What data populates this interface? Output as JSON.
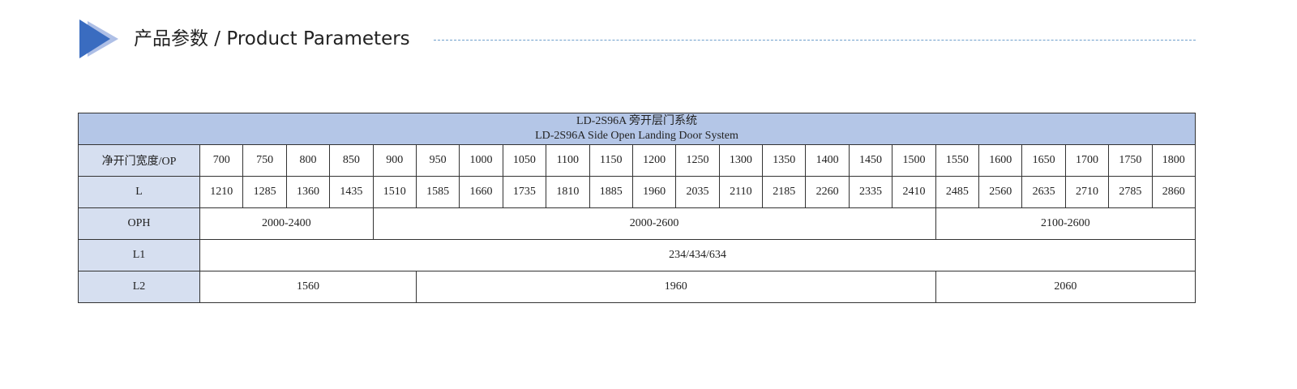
{
  "header": {
    "title": "产品参数 / Product Parameters"
  },
  "table": {
    "title": [
      "LD-2S96A 旁开层门系统",
      "LD-2S96A Side Open Landing Door System"
    ],
    "rows": [
      {
        "label": "净开门宽度/OP",
        "cells": [
          700,
          750,
          800,
          850,
          900,
          950,
          1000,
          1050,
          1100,
          1150,
          1200,
          1250,
          1300,
          1350,
          1400,
          1450,
          1500,
          1550,
          1600,
          1650,
          1700,
          1750,
          1800
        ]
      },
      {
        "label": "L",
        "cells": [
          1210,
          1285,
          1360,
          1435,
          1510,
          1585,
          1660,
          1735,
          1810,
          1885,
          1960,
          2035,
          2110,
          2185,
          2260,
          2335,
          2410,
          2485,
          2560,
          2635,
          2710,
          2785,
          2860
        ]
      },
      {
        "label": "OPH",
        "cells": [
          "2000-2400",
          "2000-2600",
          "2100-2600"
        ]
      },
      {
        "label": "L1",
        "cells": [
          "234/434/634"
        ]
      },
      {
        "label": "L2",
        "cells": [
          "1560",
          "1960",
          "2060"
        ]
      }
    ]
  }
}
